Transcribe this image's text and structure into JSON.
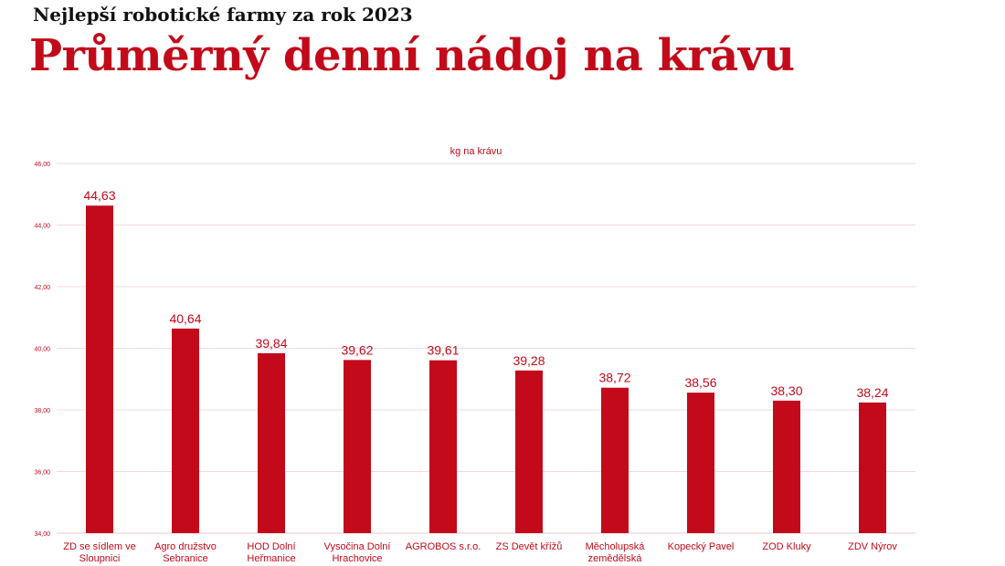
{
  "header": {
    "supertitle": "Nejlepší robotické farmy za rok 2023",
    "title": "Průměrný denní nádoj na krávu"
  },
  "chart_data": {
    "type": "bar",
    "ylabel": "kg na krávu",
    "ylim": [
      34,
      46
    ],
    "yticks": [
      "34,00",
      "36,00",
      "38,00",
      "40,00",
      "42,00",
      "44,00",
      "46,00"
    ],
    "grid": true,
    "color": "#c20a1a",
    "categories": [
      [
        "ZD se sídlem ve",
        "Sloupnici"
      ],
      [
        "Agro družstvo",
        "Sebranice"
      ],
      [
        "HOD Dolní",
        "Heřmanice"
      ],
      [
        "Vysočina Dolní",
        "Hrachovice"
      ],
      [
        "AGROBOS s.r.o."
      ],
      [
        "ZS Devět křížů"
      ],
      [
        "Měcholupská",
        "zemědělská"
      ],
      [
        "Kopecký Pavel"
      ],
      [
        "ZOD Kluky"
      ],
      [
        "ZDV Nýrov"
      ]
    ],
    "values": [
      44.63,
      40.64,
      39.84,
      39.62,
      39.61,
      39.28,
      38.72,
      38.56,
      38.3,
      38.24
    ],
    "value_labels": [
      "44,63",
      "40,64",
      "39,84",
      "39,62",
      "39,61",
      "39,28",
      "38,72",
      "38,56",
      "38,30",
      "38,24"
    ]
  }
}
